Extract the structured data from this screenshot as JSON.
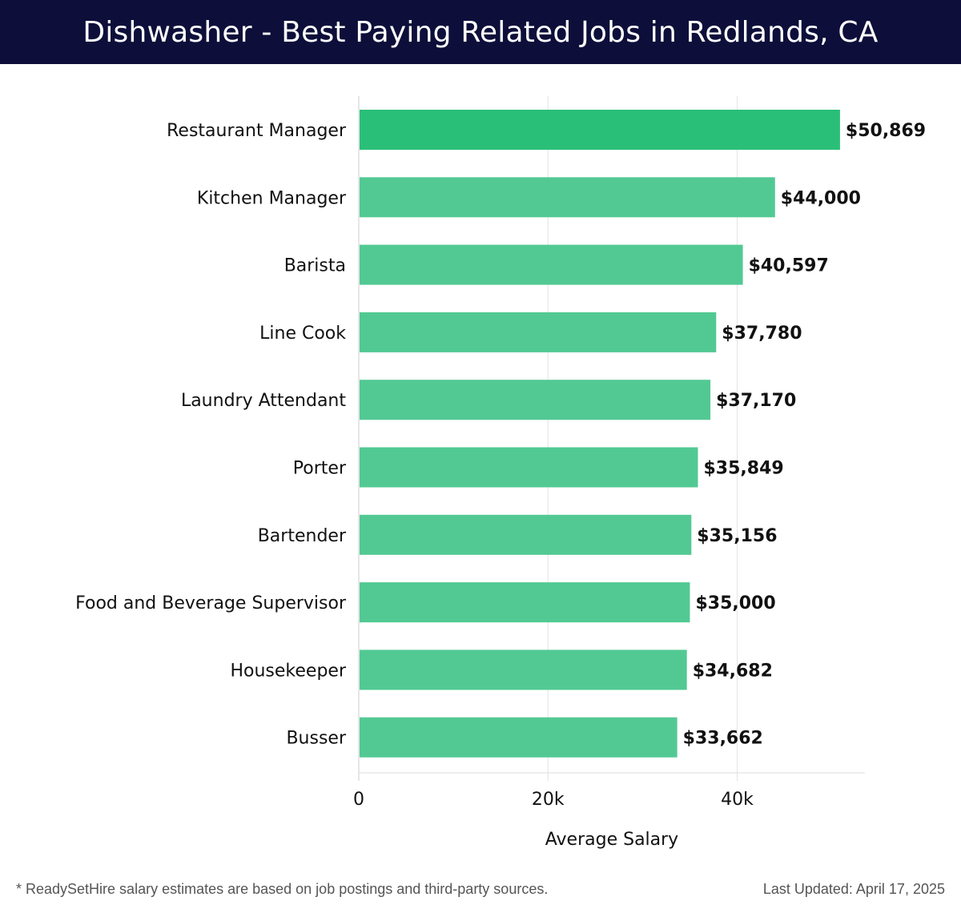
{
  "header": {
    "title": "Dishwasher - Best Paying Related Jobs in Redlands, CA"
  },
  "colors": {
    "header_bg": "#0d0f3a",
    "bar_top": "#2abf78",
    "bar": "#52c993",
    "grid": "#e3e3e3"
  },
  "chart_data": {
    "type": "bar",
    "orientation": "horizontal",
    "categories": [
      "Restaurant Manager",
      "Kitchen Manager",
      "Barista",
      "Line Cook",
      "Laundry Attendant",
      "Porter",
      "Bartender",
      "Food and Beverage Supervisor",
      "Housekeeper",
      "Busser"
    ],
    "values": [
      50869,
      44000,
      40597,
      37780,
      37170,
      35849,
      35156,
      35000,
      34682,
      33662
    ],
    "value_labels": [
      "$50,869",
      "$44,000",
      "$40,597",
      "$37,780",
      "$37,170",
      "$35,849",
      "$35,156",
      "$35,000",
      "$34,682",
      "$33,662"
    ],
    "xlabel": "Average Salary",
    "ylabel": "",
    "xlim": [
      0,
      53500
    ],
    "xticks": [
      0,
      20000,
      40000
    ],
    "xtick_labels": [
      "0",
      "20k",
      "40k"
    ],
    "grid": true
  },
  "footer": {
    "note": "* ReadySetHire salary estimates are based on job postings and third-party sources.",
    "updated": "Last Updated: April 17, 2025"
  }
}
